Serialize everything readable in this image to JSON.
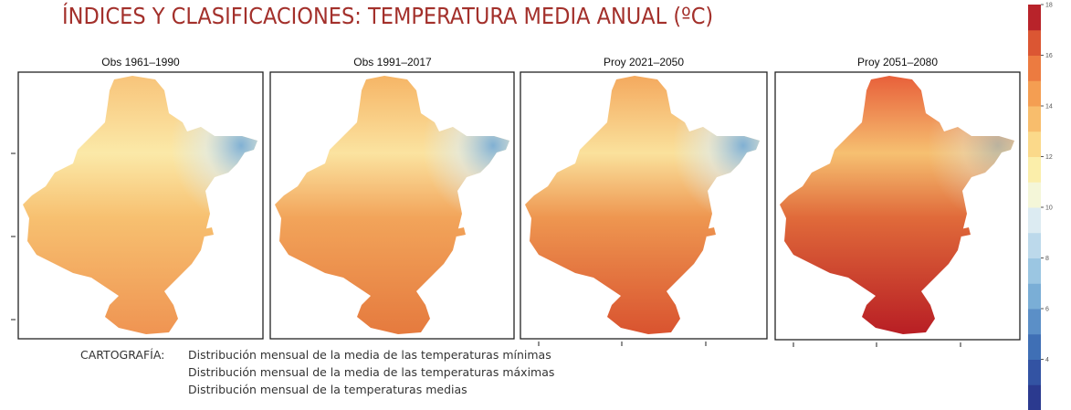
{
  "header": {
    "title": "ÍNDICES Y CLASIFICACIONES: TEMPERATURA MEDIA ANUAL (ºC)"
  },
  "panels": [
    {
      "title": "Obs 1961–1990"
    },
    {
      "title": "Obs 1991–2017"
    },
    {
      "title": "Proy 2021–2050"
    },
    {
      "title": "Proy 2051–2080"
    }
  ],
  "colorbar": {
    "lim": [
      2,
      18
    ],
    "ticks": [
      4,
      6,
      8,
      10,
      12,
      14,
      16,
      18
    ],
    "colors": [
      "#2b3a8f",
      "#3353a3",
      "#3f6fb5",
      "#5b8fc7",
      "#7aaed6",
      "#9bc6e2",
      "#bcd9eb",
      "#dcebf2",
      "#f4f6d8",
      "#fbeeaa",
      "#fbd98a",
      "#f8bd6c",
      "#f49e52",
      "#ec7b40",
      "#db5633",
      "#b8232a"
    ]
  },
  "caption": {
    "label": "CARTOGRAFÍA:",
    "lines": [
      "Distribución mensual de la media de las temperaturas mínimas",
      "Distribución mensual de la media de las temperaturas máximas",
      "Distribución mensual de la temperaturas medias"
    ]
  }
}
